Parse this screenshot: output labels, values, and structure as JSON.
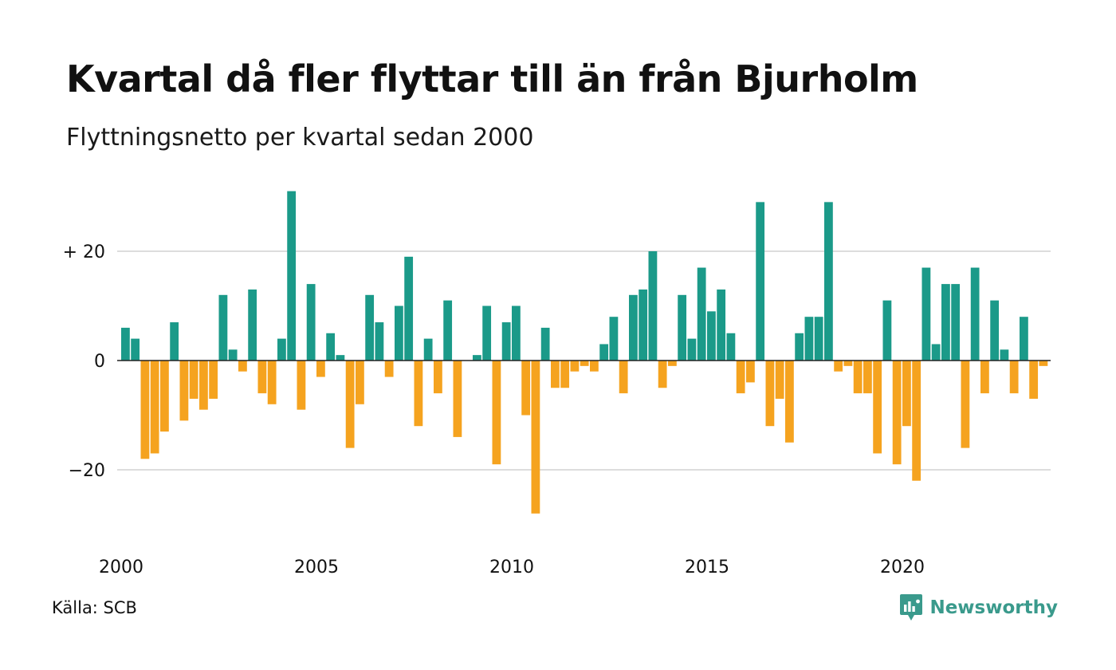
{
  "header": {
    "title": "Kvartal då fler flyttar till än från Bjurholm",
    "subtitle": "Flyttningsnetto per kvartal sedan 2000"
  },
  "footer": {
    "source": "Källa: SCB",
    "brand": "Newsworthy"
  },
  "colors": {
    "positive": "#1b9a89",
    "negative": "#f5a31f",
    "grid": "#dddddd",
    "zero_line": "#222222",
    "brand": "#3a9a8c"
  },
  "chart_data": {
    "type": "bar",
    "title": "Kvartal då fler flyttar till än från Bjurholm",
    "subtitle": "Flyttningsnetto per kvartal sedan 2000",
    "x_start": "2000 Q1",
    "x_ticks": [
      {
        "year": 2000,
        "label": "2000"
      },
      {
        "year": 2005,
        "label": "2005"
      },
      {
        "year": 2010,
        "label": "2010"
      },
      {
        "year": 2015,
        "label": "2015"
      },
      {
        "year": 2020,
        "label": "2020"
      }
    ],
    "y_ticks": [
      {
        "value": 20,
        "label": "+ 20"
      },
      {
        "value": 0,
        "label": "0"
      },
      {
        "value": -20,
        "label": "−20"
      }
    ],
    "ylim": [
      -30,
      33
    ],
    "grid": true,
    "values": [
      6,
      4,
      -18,
      -17,
      -13,
      7,
      -11,
      -7,
      -9,
      -7,
      12,
      2,
      -2,
      13,
      -6,
      -8,
      4,
      31,
      -9,
      14,
      -3,
      5,
      1,
      -16,
      -8,
      12,
      7,
      -3,
      10,
      19,
      -12,
      4,
      -6,
      11,
      -14,
      0,
      1,
      10,
      -19,
      7,
      10,
      -10,
      -28,
      6,
      -5,
      -5,
      -2,
      -1,
      -2,
      3,
      8,
      -6,
      12,
      13,
      20,
      -5,
      -1,
      12,
      4,
      17,
      9,
      13,
      5,
      -6,
      -4,
      29,
      -12,
      -7,
      -15,
      5,
      8,
      8,
      29,
      -2,
      -1,
      -6,
      -6,
      -17,
      11,
      -19,
      -12,
      -22,
      17,
      3,
      14,
      14,
      -16,
      17,
      -6,
      11,
      2,
      -6,
      8,
      -7,
      -1
    ]
  }
}
